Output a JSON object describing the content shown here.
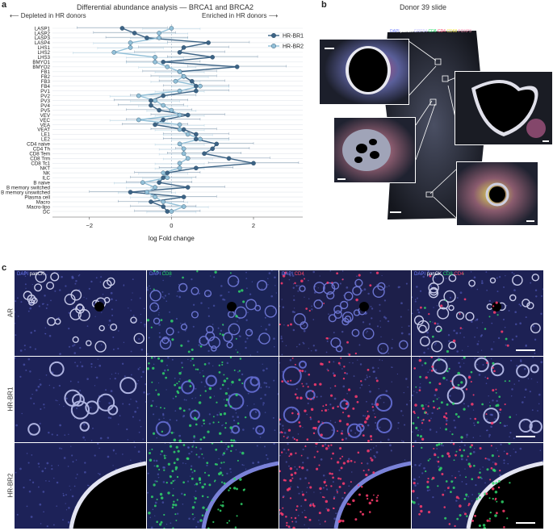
{
  "panels": {
    "a": "a",
    "b": "b",
    "c": "c"
  },
  "panel_a": {
    "title": "Differential abundance analysis — BRCA1 and BRCA2",
    "depleted_label": "Depleted in HR donors",
    "enriched_label": "Enriched in HR donors",
    "arrow_left": "⟵",
    "arrow_right": "⟶"
  },
  "chart_data": {
    "type": "line",
    "orientation": "horizontal",
    "xlabel": "log Fold change",
    "xticks": [
      -2,
      0,
      2
    ],
    "xlim": [
      -2.9,
      3.2
    ],
    "categories": [
      "LASP1",
      "LASP2",
      "LASP3",
      "LASP4",
      "LHS1",
      "LHS2",
      "LHS3",
      "BMYO1",
      "BMYO2",
      "FB1",
      "FB2",
      "FB3",
      "FB4",
      "PV1",
      "PV2",
      "PV3",
      "PV4",
      "PV5",
      "VEV",
      "VEC",
      "VEA",
      "VEAT",
      "LE1",
      "LE2",
      "CD4 naive",
      "CD4 Th",
      "CD8 Tem",
      "CD8 Trm",
      "CD8 Tc1",
      "NKT",
      "NK",
      "ILC",
      "B naive",
      "B memory switched",
      "B memory unswitched",
      "Plasma cell",
      "Macro",
      "Macro-lipo",
      "DC"
    ],
    "series": [
      {
        "name": "HR-BR1",
        "color": "#3c6385",
        "values": [
          -1.2,
          -0.9,
          -0.6,
          0.9,
          0.3,
          0.2,
          1.0,
          -0.2,
          1.6,
          0.2,
          0.3,
          0.5,
          0.6,
          0.6,
          -0.2,
          -0.5,
          -0.5,
          -0.3,
          0.4,
          -0.2,
          -0.4,
          0.3,
          0.6,
          0.6,
          1.1,
          1.0,
          0.8,
          1.4,
          2.0,
          0.6,
          -0.1,
          -0.2,
          -0.3,
          0.4,
          -1.0,
          0.3,
          -0.5,
          -0.2,
          -0.1
        ],
        "errors": [
          1.1,
          1.0,
          1.0,
          1.0,
          1.1,
          1.1,
          1.1,
          0.9,
          1.2,
          0.9,
          0.8,
          0.8,
          0.8,
          0.8,
          0.8,
          0.9,
          0.8,
          0.8,
          0.9,
          0.9,
          0.8,
          0.8,
          0.8,
          0.8,
          0.9,
          0.9,
          0.9,
          1.0,
          1.1,
          0.9,
          0.8,
          0.8,
          0.8,
          0.9,
          1.0,
          0.8,
          0.8,
          0.8,
          0.8
        ]
      },
      {
        "name": "HR-BR2",
        "color": "#92c0d8",
        "values": [
          0.0,
          -0.3,
          -0.3,
          -1.0,
          -1.0,
          -1.4,
          -0.4,
          -0.4,
          -0.1,
          0.2,
          0.3,
          0.1,
          0.7,
          0.2,
          -0.8,
          -0.4,
          -0.2,
          0.0,
          0.2,
          -0.8,
          0.2,
          0.2,
          0.4,
          0.7,
          0.2,
          0.3,
          0.3,
          0.4,
          0.2,
          0.2,
          -0.2,
          -0.1,
          -0.7,
          -0.4,
          -0.6,
          -0.4,
          -0.2,
          0.3,
          0.0
        ],
        "errors": [
          0.7,
          0.7,
          0.7,
          0.9,
          0.8,
          1.0,
          0.7,
          0.7,
          0.7,
          0.6,
          0.6,
          0.6,
          0.7,
          0.6,
          0.7,
          0.6,
          0.6,
          0.6,
          0.6,
          0.7,
          0.6,
          0.6,
          0.6,
          0.7,
          0.6,
          0.6,
          0.6,
          0.6,
          0.6,
          0.6,
          0.6,
          0.6,
          0.7,
          0.7,
          0.7,
          0.6,
          0.6,
          0.6,
          0.6
        ]
      }
    ],
    "legend_position": "top-right",
    "grid": true
  },
  "panel_b": {
    "title": "Donor 39 slide",
    "channels": [
      {
        "text": "DAPI",
        "color": "#6f7fff"
      },
      {
        "text": "panCK",
        "color": "#ffffff"
      },
      {
        "text": "GRP94",
        "color": "#c0c0ff"
      },
      {
        "text": "CD8",
        "color": "#22dd66"
      },
      {
        "text": "CD4",
        "color": "#ff4466"
      },
      {
        "text": "CD68",
        "color": "#f2e24a"
      },
      {
        "text": "FOXP3",
        "color": "#ff8fb0"
      }
    ]
  },
  "panel_c": {
    "columns": [
      [
        {
          "text": "DAPI",
          "color": "#6f7fff"
        },
        {
          "text": " panCK",
          "color": "#ffffff"
        }
      ],
      [
        {
          "text": "DAPI",
          "color": "#6f7fff"
        },
        {
          "text": " CD8",
          "color": "#22dd66"
        }
      ],
      [
        {
          "text": "DAPI",
          "color": "#6f7fff"
        },
        {
          "text": " CD4",
          "color": "#ff4466"
        }
      ],
      [
        {
          "text": "DAPI",
          "color": "#6f7fff"
        },
        {
          "text": " panCK",
          "color": "#ffffff"
        },
        {
          "text": " CD8",
          "color": "#22dd66"
        },
        {
          "text": " CD4",
          "color": "#ff4466"
        }
      ]
    ],
    "rows": [
      "AR",
      "HR-BR1",
      "HR-BR2"
    ]
  }
}
